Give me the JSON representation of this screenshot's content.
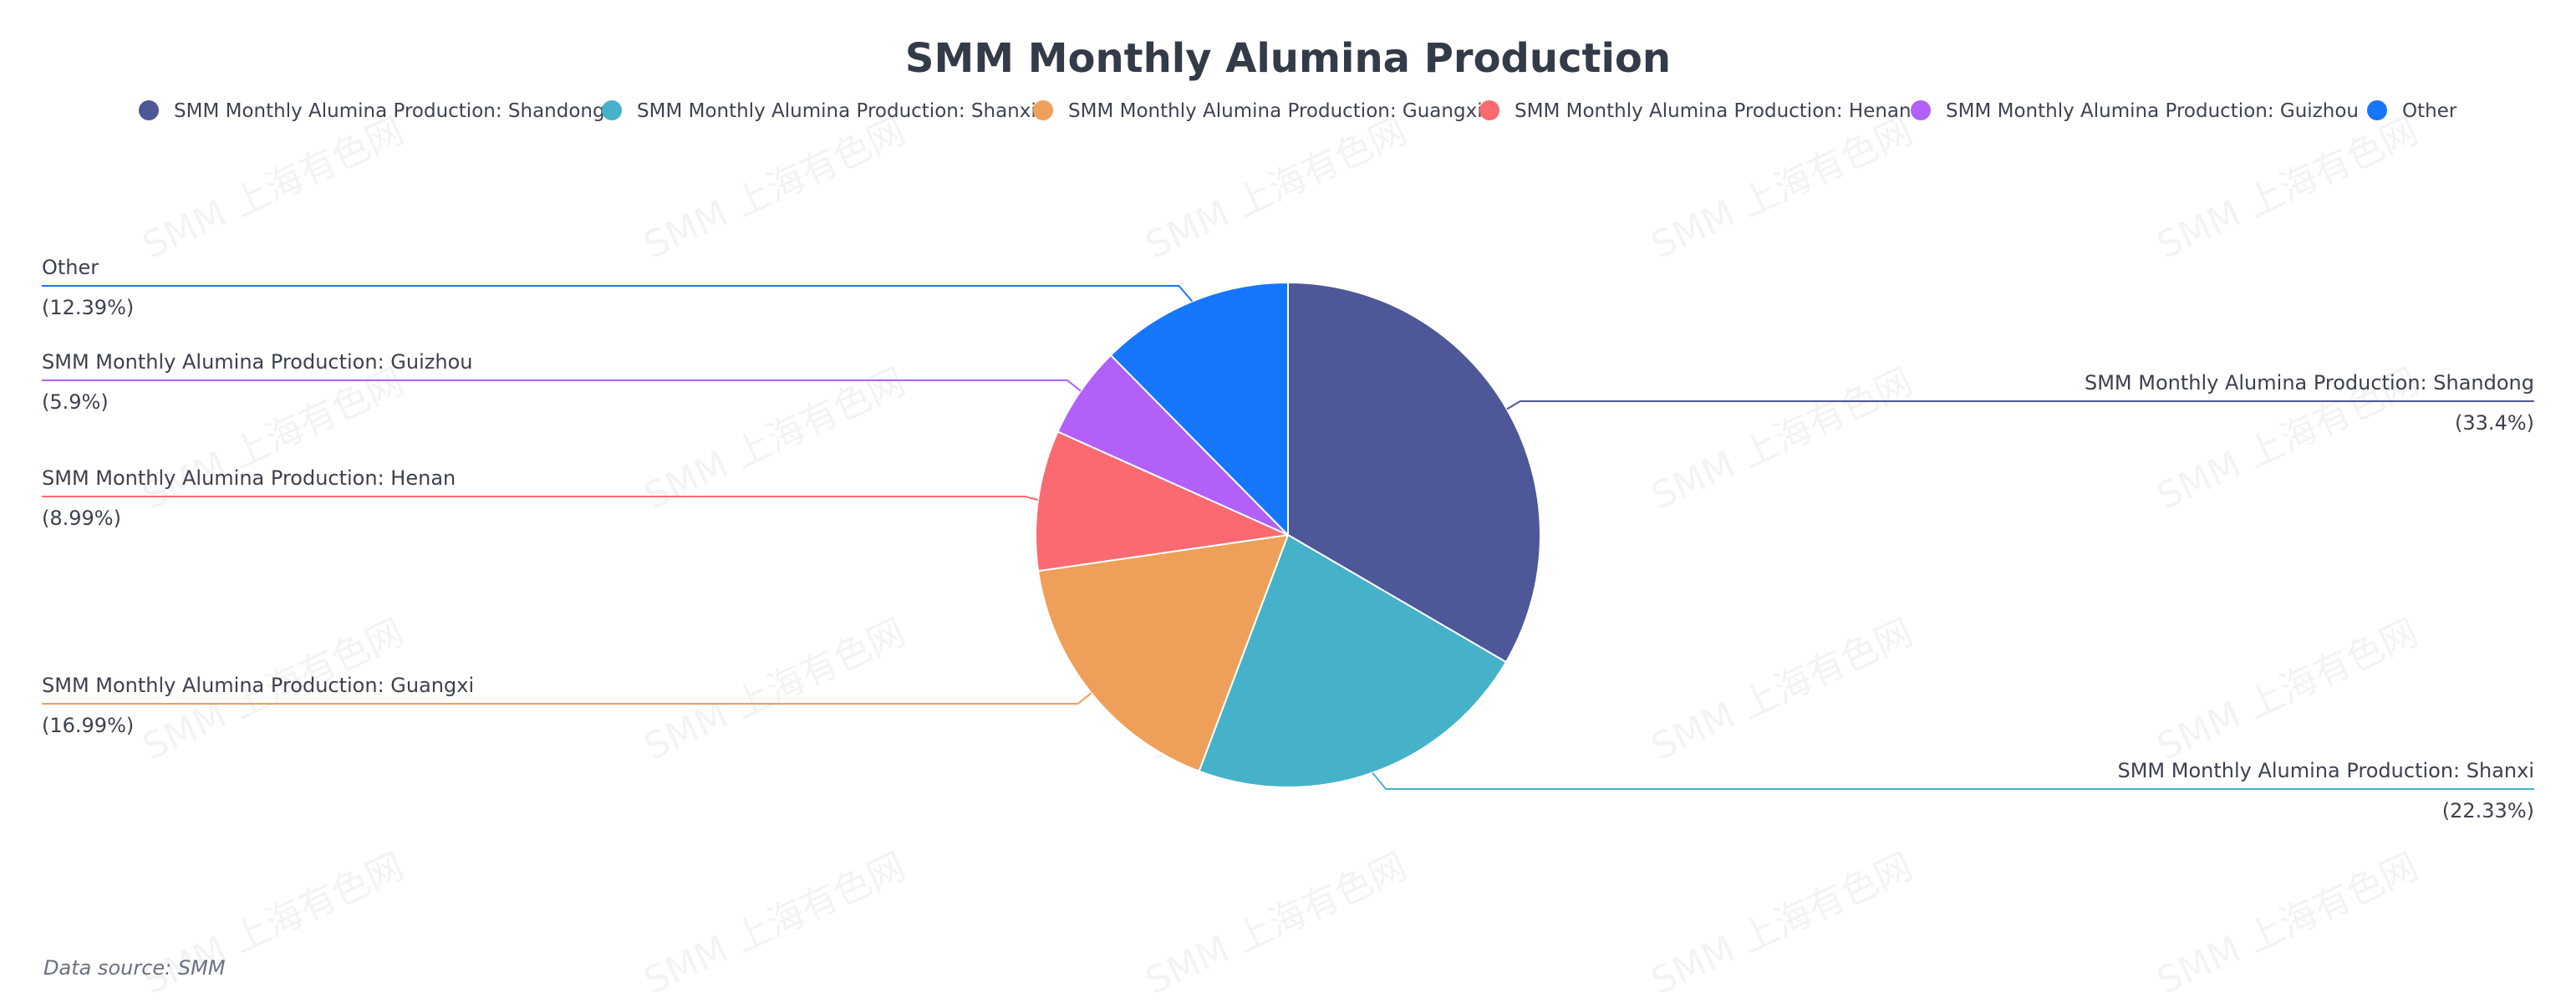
{
  "watermark": "SMM 上海有色网",
  "data_source": "Data source:  SMM",
  "colors": {
    "Shandong": "#4e5797",
    "Shanxi": "#45b2c9",
    "Guangxi": "#eea05a",
    "Henan": "#fc6a71",
    "Guizhou": "#b161f8",
    "Other": "#1676fc"
  },
  "chart_data": {
    "type": "pie",
    "title": "SMM Monthly Alumina Production",
    "legend_position": "top",
    "slices": [
      {
        "name": "SMM Monthly Alumina Production: Shandong",
        "value": 33.4,
        "pct_label": "(33.4%)",
        "color": "#4e5797"
      },
      {
        "name": "SMM Monthly Alumina Production: Shanxi",
        "value": 22.33,
        "pct_label": "(22.33%)",
        "color": "#45b2c9"
      },
      {
        "name": "SMM Monthly Alumina Production: Guangxi",
        "value": 16.99,
        "pct_label": "(16.99%)",
        "color": "#eea05a"
      },
      {
        "name": "SMM Monthly Alumina Production: Henan",
        "value": 8.99,
        "pct_label": "(8.99%)",
        "color": "#fc6a71"
      },
      {
        "name": "SMM Monthly Alumina Production: Guizhou",
        "value": 5.9,
        "pct_label": "(5.9%)",
        "color": "#b161f8"
      },
      {
        "name": "Other",
        "value": 12.39,
        "pct_label": "(12.39%)",
        "color": "#1676fc"
      }
    ]
  }
}
